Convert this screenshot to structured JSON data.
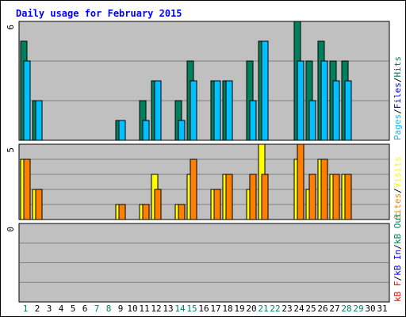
{
  "title": "Daily usage for February 2015",
  "colors": {
    "background": "#c0c0c0",
    "gridline": "#808080",
    "hits": "#00805c",
    "files": "#00c0ff",
    "pages": "#00c0ff",
    "visits": "#ffff00",
    "sites": "#ff8000",
    "kb": "#ff0000",
    "kb_in": "#0000ff",
    "kb_out": "#00805c",
    "weekend_day": "#00805c",
    "weekday_day": "#000000"
  },
  "chart_data": [
    {
      "name": "hits-files-pages",
      "type": "bar",
      "ymax_label": "6",
      "ylim": [
        0,
        6
      ],
      "grid": true,
      "legend_parts": [
        {
          "text": "Pages",
          "color": "#00c0ff"
        },
        {
          "text": "/",
          "color": "#000000"
        },
        {
          "text": "Files",
          "color": "#0000ff"
        },
        {
          "text": "/",
          "color": "#000000"
        },
        {
          "text": "Hits",
          "color": "#00805c"
        }
      ],
      "categories": [
        "1",
        "2",
        "3",
        "4",
        "5",
        "6",
        "7",
        "8",
        "9",
        "10",
        "11",
        "12",
        "13",
        "14",
        "15",
        "16",
        "17",
        "18",
        "19",
        "20",
        "21",
        "22",
        "23",
        "24",
        "25",
        "26",
        "27",
        "28",
        "29",
        "30",
        "31"
      ],
      "series": [
        {
          "name": "Hits",
          "color": "#00805c",
          "values": [
            5,
            2,
            0,
            0,
            0,
            0,
            0,
            0,
            1,
            0,
            2,
            3,
            0,
            2,
            4,
            0,
            3,
            3,
            0,
            4,
            5,
            0,
            0,
            6,
            4,
            5,
            4,
            4,
            0,
            0,
            0
          ]
        },
        {
          "name": "Files",
          "color": "#00c0ff",
          "values": [
            4,
            2,
            0,
            0,
            0,
            0,
            0,
            0,
            1,
            0,
            1,
            3,
            0,
            1,
            3,
            0,
            3,
            3,
            0,
            2,
            5,
            0,
            0,
            4,
            2,
            4,
            3,
            3,
            0,
            0,
            0
          ]
        }
      ]
    },
    {
      "name": "visits-sites",
      "type": "bar",
      "ymax_label": "5",
      "ylim": [
        0,
        5
      ],
      "grid": true,
      "legend_parts": [
        {
          "text": "Sites",
          "color": "#ff8000"
        },
        {
          "text": "/",
          "color": "#000000"
        },
        {
          "text": "Visits",
          "color": "#ffff00"
        }
      ],
      "categories": [
        "1",
        "2",
        "3",
        "4",
        "5",
        "6",
        "7",
        "8",
        "9",
        "10",
        "11",
        "12",
        "13",
        "14",
        "15",
        "16",
        "17",
        "18",
        "19",
        "20",
        "21",
        "22",
        "23",
        "24",
        "25",
        "26",
        "27",
        "28",
        "29",
        "30",
        "31"
      ],
      "series": [
        {
          "name": "Visits",
          "color": "#ffff00",
          "values": [
            4,
            2,
            0,
            0,
            0,
            0,
            0,
            0,
            1,
            0,
            1,
            3,
            0,
            1,
            3,
            0,
            2,
            3,
            0,
            2,
            5,
            0,
            0,
            4,
            2,
            4,
            3,
            3,
            0,
            0,
            0
          ]
        },
        {
          "name": "Sites",
          "color": "#ff8000",
          "values": [
            4,
            2,
            0,
            0,
            0,
            0,
            0,
            0,
            1,
            0,
            1,
            2,
            0,
            1,
            4,
            0,
            2,
            3,
            0,
            3,
            3,
            0,
            0,
            5,
            3,
            4,
            3,
            3,
            0,
            0,
            0
          ]
        }
      ]
    },
    {
      "name": "kbytes",
      "type": "bar",
      "ymax_label": "0",
      "ylim": [
        0,
        1
      ],
      "grid": true,
      "legend_parts": [
        {
          "text": "kB F",
          "color": "#ff0000"
        },
        {
          "text": "/",
          "color": "#000000"
        },
        {
          "text": "kB In",
          "color": "#0000ff"
        },
        {
          "text": "/",
          "color": "#000000"
        },
        {
          "text": "kB Out",
          "color": "#00805c"
        }
      ],
      "categories": [
        "1",
        "2",
        "3",
        "4",
        "5",
        "6",
        "7",
        "8",
        "9",
        "10",
        "11",
        "12",
        "13",
        "14",
        "15",
        "16",
        "17",
        "18",
        "19",
        "20",
        "21",
        "22",
        "23",
        "24",
        "25",
        "26",
        "27",
        "28",
        "29",
        "30",
        "31"
      ],
      "series": []
    }
  ],
  "x_axis": {
    "labels": [
      "1",
      "2",
      "3",
      "4",
      "5",
      "6",
      "7",
      "8",
      "9",
      "10",
      "11",
      "12",
      "13",
      "14",
      "15",
      "16",
      "17",
      "18",
      "19",
      "20",
      "21",
      "22",
      "23",
      "24",
      "25",
      "26",
      "27",
      "28",
      "29",
      "30",
      "31"
    ],
    "weekend": [
      1,
      7,
      8,
      14,
      15,
      21,
      22,
      28,
      29
    ]
  }
}
